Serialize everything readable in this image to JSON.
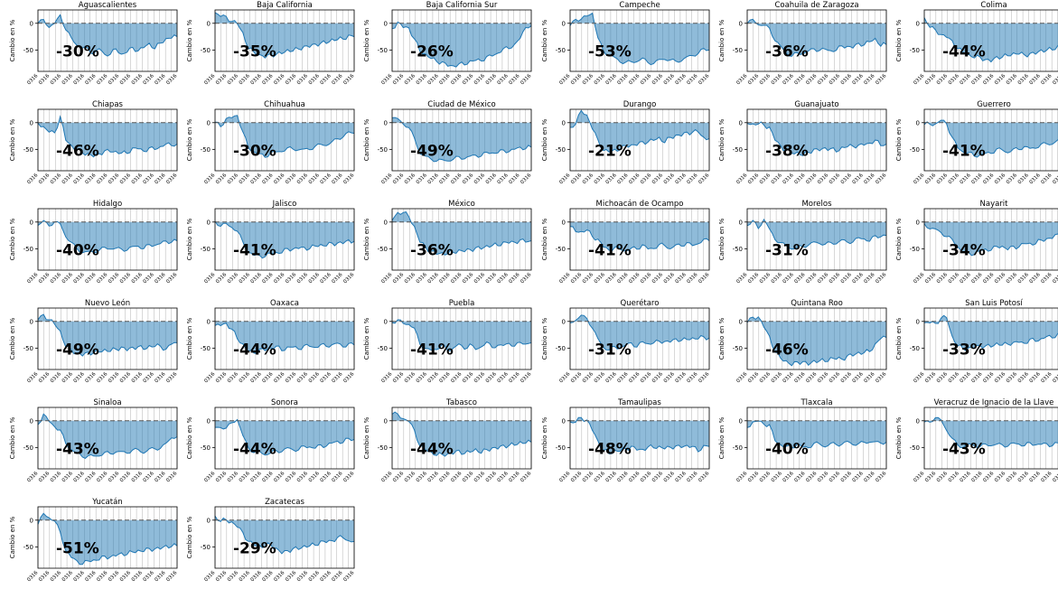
{
  "figure": {
    "ylabel": "Cambio en %",
    "yticks": [
      0,
      -50
    ],
    "ytick_labels": [
      "0",
      "-50"
    ],
    "colors": {
      "line": "#1f77b4",
      "fill": "#1f77b4",
      "baseline": "#555555",
      "grid": "#b0b0b0"
    }
  },
  "chart_data": {
    "type": "area",
    "ylim": [
      -90,
      25
    ],
    "grid": "vertical only",
    "x_tick_labels": "dense rotated date labels (illegible)",
    "panels": [
      {
        "name": "Aguascalientes",
        "label": "-30%",
        "shape": [
          0,
          5,
          -5,
          -2,
          15,
          -10,
          -30,
          -40,
          -45,
          -50,
          -55,
          -48,
          -60,
          -55,
          -50,
          -58,
          -52,
          -48,
          -50,
          -45,
          -40,
          -45,
          -38,
          -30,
          -25
        ]
      },
      {
        "name": "Baja California",
        "label": "-35%",
        "shape": [
          20,
          15,
          10,
          5,
          0,
          -20,
          -45,
          -55,
          -60,
          -62,
          -60,
          -58,
          -55,
          -52,
          -50,
          -48,
          -45,
          -42,
          -40,
          -38,
          -35,
          -32,
          -30,
          -28,
          -25
        ]
      },
      {
        "name": "Baja California Sur",
        "label": "-26%",
        "shape": [
          -10,
          0,
          -5,
          -10,
          -30,
          -50,
          -60,
          -65,
          -70,
          -75,
          -78,
          -80,
          -78,
          -75,
          -72,
          -70,
          -68,
          -65,
          -60,
          -55,
          -50,
          -45,
          -40,
          -30,
          -5
        ]
      },
      {
        "name": "Campeche",
        "label": "-53%",
        "shape": [
          -5,
          10,
          5,
          15,
          20,
          -30,
          -50,
          -60,
          -65,
          -70,
          -75,
          -72,
          -70,
          -68,
          -72,
          -75,
          -70,
          -65,
          -70,
          -72,
          -68,
          -65,
          -60,
          -55,
          -50
        ]
      },
      {
        "name": "Coahuila de Zaragoza",
        "label": "-36%",
        "shape": [
          0,
          5,
          0,
          -5,
          -10,
          -30,
          -45,
          -55,
          -60,
          -58,
          -55,
          -52,
          -50,
          -48,
          -50,
          -52,
          -48,
          -45,
          -42,
          -45,
          -40,
          -38,
          -35,
          -30,
          -40
        ]
      },
      {
        "name": "Colima",
        "label": "-44%",
        "shape": [
          10,
          -5,
          -15,
          -20,
          -25,
          -35,
          -45,
          -55,
          -60,
          -62,
          -65,
          -68,
          -70,
          -65,
          -62,
          -60,
          -58,
          -55,
          -60,
          -58,
          -55,
          -52,
          -50,
          -48,
          -45
        ]
      },
      {
        "name": "Chiapas",
        "label": "-46%",
        "shape": [
          0,
          -10,
          -15,
          -20,
          10,
          -30,
          -45,
          -50,
          -55,
          -60,
          -62,
          -58,
          -55,
          -52,
          -55,
          -58,
          -55,
          -50,
          -48,
          -52,
          -50,
          -48,
          -45,
          -42,
          -40
        ]
      },
      {
        "name": "Chihuahua",
        "label": "-30%",
        "shape": [
          0,
          -5,
          5,
          10,
          15,
          -20,
          -45,
          -55,
          -60,
          -62,
          -58,
          -55,
          -52,
          -50,
          -48,
          -50,
          -52,
          -48,
          -45,
          -42,
          -40,
          -38,
          -30,
          -25,
          -20
        ]
      },
      {
        "name": "Ciudad de México",
        "label": "-49%",
        "shape": [
          10,
          5,
          0,
          -10,
          -30,
          -55,
          -65,
          -68,
          -70,
          -72,
          -70,
          -68,
          -66,
          -65,
          -64,
          -62,
          -60,
          -58,
          -56,
          -55,
          -54,
          -52,
          -50,
          -48,
          -46
        ]
      },
      {
        "name": "Durango",
        "label": "-21%",
        "shape": [
          -10,
          0,
          20,
          15,
          -10,
          -35,
          -50,
          -55,
          -52,
          -48,
          -45,
          -42,
          -40,
          -38,
          -35,
          -32,
          -30,
          -35,
          -28,
          -25,
          -22,
          -20,
          -18,
          -15,
          -30
        ]
      },
      {
        "name": "Guanajuato",
        "label": "-38%",
        "shape": [
          0,
          -5,
          0,
          -5,
          -10,
          -30,
          -45,
          -52,
          -55,
          -58,
          -60,
          -55,
          -52,
          -50,
          -48,
          -50,
          -52,
          -48,
          -45,
          -42,
          -45,
          -40,
          -38,
          -35,
          -40
        ]
      },
      {
        "name": "Guerrero",
        "label": "-41%",
        "shape": [
          -5,
          0,
          -5,
          5,
          0,
          -30,
          -45,
          -55,
          -58,
          -60,
          -62,
          -58,
          -55,
          -52,
          -50,
          -55,
          -52,
          -48,
          -45,
          -50,
          -45,
          -42,
          -40,
          -38,
          -35
        ]
      },
      {
        "name": "Hidalgo",
        "label": "-40%",
        "shape": [
          -5,
          0,
          -5,
          0,
          -5,
          -25,
          -40,
          -50,
          -55,
          -58,
          -55,
          -52,
          -50,
          -48,
          -50,
          -52,
          -50,
          -48,
          -45,
          -48,
          -45,
          -42,
          -40,
          -38,
          -35
        ]
      },
      {
        "name": "Jalisco",
        "label": "-41%",
        "shape": [
          0,
          -5,
          -5,
          -10,
          -15,
          -40,
          -55,
          -62,
          -65,
          -62,
          -60,
          -58,
          -55,
          -52,
          -50,
          -48,
          -50,
          -48,
          -45,
          -44,
          -42,
          -41,
          -40,
          -38,
          -36
        ]
      },
      {
        "name": "México",
        "label": "-36%",
        "shape": [
          5,
          15,
          20,
          10,
          -10,
          -35,
          -48,
          -55,
          -58,
          -60,
          -58,
          -56,
          -55,
          -53,
          -52,
          -50,
          -48,
          -46,
          -44,
          -42,
          -40,
          -38,
          -37,
          -36,
          -35
        ]
      },
      {
        "name": "Michoacán de Ocampo",
        "label": "-41%",
        "shape": [
          -10,
          -15,
          -20,
          -15,
          -25,
          -35,
          -45,
          -52,
          -50,
          -48,
          -55,
          -50,
          -48,
          -45,
          -50,
          -48,
          -45,
          -42,
          -50,
          -45,
          -42,
          -40,
          -45,
          -38,
          -35
        ]
      },
      {
        "name": "Morelos",
        "label": "-31%",
        "shape": [
          -5,
          0,
          -10,
          5,
          -15,
          -30,
          -40,
          -45,
          -48,
          -50,
          -45,
          -42,
          -40,
          -38,
          -42,
          -40,
          -38,
          -35,
          -38,
          -35,
          -32,
          -30,
          -35,
          -28,
          -25
        ]
      },
      {
        "name": "Nayarit",
        "label": "-34%",
        "shape": [
          -5,
          -10,
          -15,
          -20,
          -25,
          -35,
          -45,
          -55,
          -60,
          -58,
          -55,
          -52,
          -50,
          -48,
          -45,
          -50,
          -48,
          -45,
          -40,
          -42,
          -38,
          -35,
          -32,
          -28,
          -25
        ]
      },
      {
        "name": "Nuevo León",
        "label": "-49%",
        "shape": [
          5,
          10,
          5,
          -5,
          -20,
          -45,
          -55,
          -60,
          -62,
          -60,
          -58,
          -56,
          -55,
          -54,
          -52,
          -50,
          -52,
          -50,
          -48,
          -50,
          -48,
          -46,
          -45,
          -55,
          -40
        ]
      },
      {
        "name": "Oaxaca",
        "label": "-44%",
        "shape": [
          -10,
          -5,
          -5,
          -15,
          -30,
          -45,
          -55,
          -58,
          -55,
          -52,
          -50,
          -48,
          -52,
          -50,
          -48,
          -50,
          -48,
          -45,
          -48,
          -46,
          -44,
          -45,
          -42,
          -45,
          -44
        ]
      },
      {
        "name": "Puebla",
        "label": "-41%",
        "shape": [
          0,
          0,
          -2,
          -5,
          -15,
          -40,
          -52,
          -55,
          -50,
          -45,
          -55,
          -48,
          -45,
          -50,
          -42,
          -55,
          -45,
          -40,
          -50,
          -42,
          -48,
          -40,
          -45,
          -42,
          -40
        ]
      },
      {
        "name": "Querétaro",
        "label": "-31%",
        "shape": [
          -5,
          5,
          10,
          5,
          -10,
          -35,
          -48,
          -52,
          -50,
          -48,
          -45,
          -42,
          -45,
          -40,
          -42,
          -38,
          -40,
          -36,
          -38,
          -35,
          -33,
          -35,
          -32,
          -30,
          -31
        ]
      },
      {
        "name": "Quintana Roo",
        "label": "-46%",
        "shape": [
          0,
          5,
          10,
          -10,
          -30,
          -55,
          -70,
          -75,
          -80,
          -78,
          -75,
          -80,
          -76,
          -72,
          -75,
          -70,
          -68,
          -72,
          -65,
          -62,
          -60,
          -58,
          -55,
          -45,
          -30
        ]
      },
      {
        "name": "San Luis Potosí",
        "label": "-33%",
        "shape": [
          -5,
          0,
          -5,
          5,
          10,
          -30,
          -45,
          -50,
          -52,
          -48,
          -45,
          -48,
          -45,
          -42,
          -45,
          -40,
          -42,
          -38,
          -40,
          -36,
          -35,
          -33,
          -30,
          -28,
          -25
        ]
      },
      {
        "name": "Sinaloa",
        "label": "-43%",
        "shape": [
          -5,
          10,
          0,
          -10,
          -20,
          -40,
          -55,
          -62,
          -65,
          -68,
          -66,
          -64,
          -62,
          -60,
          -58,
          -60,
          -58,
          -56,
          -55,
          -58,
          -55,
          -52,
          -50,
          -45,
          -30
        ]
      },
      {
        "name": "Sonora",
        "label": "-44%",
        "shape": [
          -15,
          -10,
          -15,
          -5,
          5,
          -30,
          -50,
          -58,
          -60,
          -62,
          -60,
          -58,
          -55,
          -52,
          -55,
          -52,
          -50,
          -48,
          -50,
          -48,
          -45,
          -42,
          -40,
          -38,
          -35
        ]
      },
      {
        "name": "Tabasco",
        "label": "-44%",
        "shape": [
          15,
          10,
          5,
          0,
          -20,
          -45,
          -55,
          -60,
          -62,
          -65,
          -62,
          -60,
          -58,
          -60,
          -58,
          -55,
          -58,
          -55,
          -52,
          -50,
          -48,
          -46,
          -44,
          -42,
          -40
        ]
      },
      {
        "name": "Tamaulipas",
        "label": "-48%",
        "shape": [
          -5,
          0,
          5,
          0,
          -15,
          -40,
          -55,
          -60,
          -58,
          -55,
          -52,
          -50,
          -52,
          -55,
          -50,
          -48,
          -50,
          -52,
          -48,
          -50,
          -48,
          -46,
          -50,
          -55,
          -48
        ]
      },
      {
        "name": "Tlaxcala",
        "label": "-40%",
        "shape": [
          -10,
          -5,
          0,
          -5,
          -10,
          -35,
          -45,
          -50,
          -48,
          -45,
          -50,
          -48,
          -45,
          -42,
          -48,
          -45,
          -42,
          -45,
          -40,
          -42,
          -45,
          -40,
          -38,
          -42,
          -40
        ]
      },
      {
        "name": "Veracruz de Ignacio de la Llave",
        "label": "-43%",
        "shape": [
          -5,
          0,
          5,
          0,
          -15,
          -35,
          -45,
          -48,
          -46,
          -45,
          -48,
          -46,
          -44,
          -45,
          -46,
          -45,
          -44,
          -43,
          -45,
          -44,
          -43,
          -44,
          -45,
          -44,
          -43
        ]
      },
      {
        "name": "Yucatán",
        "label": "-51%",
        "shape": [
          -5,
          10,
          5,
          0,
          -25,
          -55,
          -70,
          -78,
          -80,
          -78,
          -75,
          -72,
          -70,
          -68,
          -66,
          -64,
          -62,
          -60,
          -58,
          -56,
          -55,
          -54,
          -52,
          -50,
          -48
        ]
      },
      {
        "name": "Zacatecas",
        "label": "-29%",
        "shape": [
          5,
          0,
          0,
          -5,
          -10,
          -25,
          -40,
          -45,
          -50,
          -48,
          -45,
          -55,
          -60,
          -58,
          -55,
          -52,
          -50,
          -48,
          -45,
          -42,
          -40,
          -38,
          -35,
          -30,
          -40
        ]
      }
    ]
  }
}
